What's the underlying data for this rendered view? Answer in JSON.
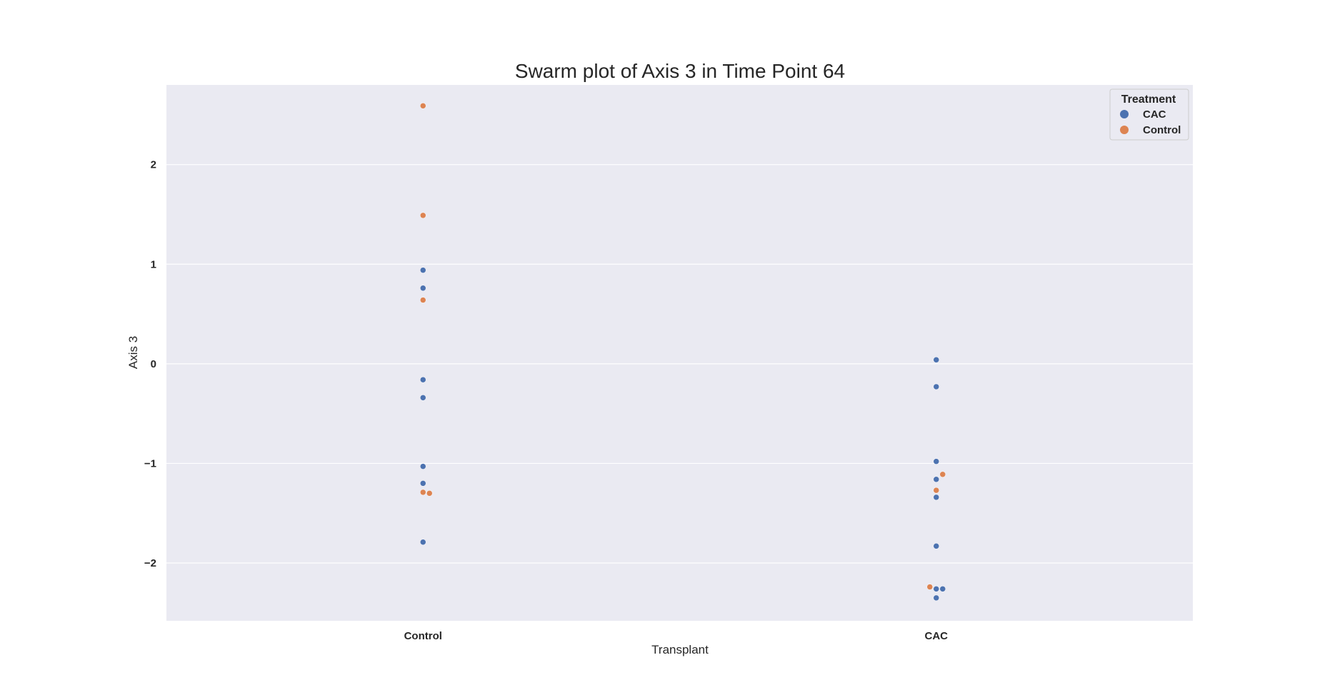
{
  "chart_data": {
    "type": "scatter",
    "subtype": "swarm",
    "title": "Swarm plot of Axis 3 in Time Point 64",
    "xlabel": "Transplant",
    "ylabel": "Axis 3",
    "categories": [
      "Control",
      "CAC"
    ],
    "ylim": [
      -2.58,
      2.8
    ],
    "yticks": [
      2,
      1,
      0,
      -1,
      -2
    ],
    "ytick_labels": [
      "2",
      "1",
      "0",
      "−1",
      "−2"
    ],
    "grid": true,
    "legend": {
      "title": "Treatment",
      "placement": "top-right",
      "entries": [
        {
          "name": "CAC",
          "color": "#4c72b0"
        },
        {
          "name": "Control",
          "color": "#dd8452"
        }
      ]
    },
    "colors": {
      "background": "#eaeaf2",
      "grid": "#ffffff",
      "CAC": "#4c72b0",
      "Control": "#dd8452"
    },
    "series": [
      {
        "name": "CAC",
        "points": [
          {
            "x": "Control",
            "y": 0.94
          },
          {
            "x": "Control",
            "y": 0.76
          },
          {
            "x": "Control",
            "y": -0.16
          },
          {
            "x": "Control",
            "y": -0.34
          },
          {
            "x": "Control",
            "y": -1.03
          },
          {
            "x": "Control",
            "y": -1.2
          },
          {
            "x": "Control",
            "y": -1.79
          },
          {
            "x": "CAC",
            "y": 0.04
          },
          {
            "x": "CAC",
            "y": -0.23
          },
          {
            "x": "CAC",
            "y": -0.98
          },
          {
            "x": "CAC",
            "y": -1.16
          },
          {
            "x": "CAC",
            "y": -1.34
          },
          {
            "x": "CAC",
            "y": -1.83
          },
          {
            "x": "CAC",
            "y": -2.26
          },
          {
            "x": "CAC",
            "y": -2.26
          },
          {
            "x": "CAC",
            "y": -2.35
          }
        ]
      },
      {
        "name": "Control",
        "points": [
          {
            "x": "Control",
            "y": 2.59
          },
          {
            "x": "Control",
            "y": 1.49
          },
          {
            "x": "Control",
            "y": 0.64
          },
          {
            "x": "Control",
            "y": -1.29
          },
          {
            "x": "Control",
            "y": -1.3
          },
          {
            "x": "CAC",
            "y": -1.11
          },
          {
            "x": "CAC",
            "y": -1.27
          },
          {
            "x": "CAC",
            "y": -2.24
          }
        ]
      }
    ]
  }
}
